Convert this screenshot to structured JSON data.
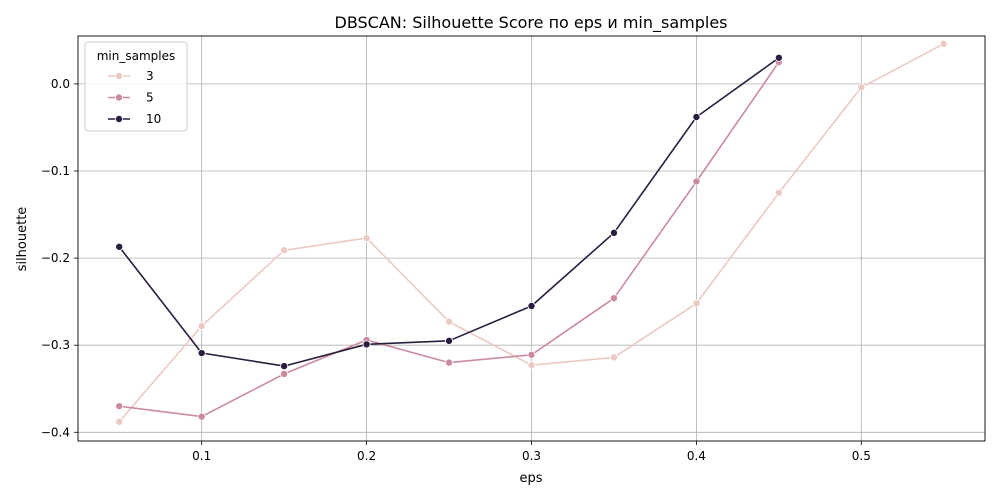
{
  "chart_data": {
    "type": "line",
    "title": "DBSCAN: Silhouette Score по eps и min_samples",
    "xlabel": "eps",
    "ylabel": "silhouette",
    "xlim": [
      0.025,
      0.575
    ],
    "ylim": [
      -0.41,
      0.055
    ],
    "x_ticks": [
      0.1,
      0.2,
      0.3,
      0.4,
      0.5
    ],
    "x_tick_labels": [
      "0.1",
      "0.2",
      "0.3",
      "0.4",
      "0.5"
    ],
    "y_ticks": [
      -0.4,
      -0.3,
      -0.2,
      -0.1,
      0.0
    ],
    "y_tick_labels": [
      "−0.4",
      "−0.3",
      "−0.2",
      "−0.1",
      "0.0"
    ],
    "grid": true,
    "legend": {
      "title": "min_samples",
      "position": "top-left"
    },
    "series": [
      {
        "name": "3",
        "color": "#ebcac3",
        "x": [
          0.05,
          0.1,
          0.15,
          0.2,
          0.25,
          0.3,
          0.35,
          0.4,
          0.45,
          0.5,
          0.55
        ],
        "values": [
          -0.388,
          -0.278,
          -0.191,
          -0.177,
          -0.273,
          -0.323,
          -0.314,
          -0.252,
          -0.125,
          -0.004,
          0.046
        ]
      },
      {
        "name": "5",
        "color": "#cb8a9f",
        "x": [
          0.05,
          0.1,
          0.15,
          0.2,
          0.25,
          0.3,
          0.35,
          0.4,
          0.45
        ],
        "values": [
          -0.37,
          -0.382,
          -0.333,
          -0.294,
          -0.32,
          -0.311,
          -0.246,
          -0.112,
          0.025
        ]
      },
      {
        "name": "10",
        "color": "#2b1d3e",
        "x": [
          0.05,
          0.1,
          0.15,
          0.2,
          0.25,
          0.3,
          0.35,
          0.4,
          0.45
        ],
        "values": [
          -0.187,
          -0.309,
          -0.324,
          -0.299,
          -0.295,
          -0.255,
          -0.171,
          -0.038,
          0.03
        ]
      }
    ]
  }
}
